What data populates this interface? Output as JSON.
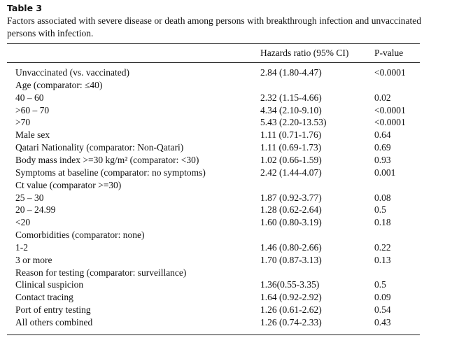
{
  "table_title": "Table 3",
  "caption": "Factors associated with severe disease or death among persons with breakthrough infection and unvaccinated persons with infection.",
  "table": {
    "header": [
      "Hazards ratio (95% CI)",
      "P-value"
    ],
    "rows": [
      {
        "label": "Unvaccinated (vs. vaccinated)",
        "hr": "2.84 (1.80-4.47)",
        "p": "<0.0001"
      },
      {
        "label": "Age (comparator: ≤40)"
      },
      {
        "label": "40 – 60",
        "hr": "2.32 (1.15-4.66)",
        "p": "0.02"
      },
      {
        "label": ">60 – 70",
        "hr": "4.34 (2.10-9.10)",
        "p": "<0.0001"
      },
      {
        "label": ">70",
        "hr": "5.43 (2.20-13.53)",
        "p": "<0.0001"
      },
      {
        "label": "Male sex",
        "hr": "1.11 (0.71-1.76)",
        "p": "0.64"
      },
      {
        "label": "Qatari Nationality (comparator: Non-Qatari)",
        "hr": "1.11 (0.69-1.73)",
        "p": "0.69"
      },
      {
        "label": "Body mass index >=30 kg/m² (comparator: <30)",
        "hr": "1.02 (0.66-1.59)",
        "p": "0.93"
      },
      {
        "label": "Symptoms at baseline (comparator: no symptoms)",
        "hr": "2.42 (1.44-4.07)",
        "p": "0.001"
      },
      {
        "label": "Ct value (comparator >=30)"
      },
      {
        "label": "25 – 30",
        "hr": "1.87 (0.92-3.77)",
        "p": "0.08"
      },
      {
        "label": "20 – 24.99",
        "hr": "1.28 (0.62-2.64)",
        "p": "0.5"
      },
      {
        "label": "<20",
        "hr": "1.60 (0.80-3.19)",
        "p": "0.18"
      },
      {
        "label": "Comorbidities (comparator: none)"
      },
      {
        "label": "1-2",
        "hr": "1.46 (0.80-2.66)",
        "p": "0.22"
      },
      {
        "label": "3 or more",
        "hr": "1.70 (0.87-3.13)",
        "p": "0.13"
      },
      {
        "label": "Reason for testing (comparator: surveillance)"
      },
      {
        "label": "Clinical suspicion",
        "hr": "1.36(0.55-3.35)",
        "p": "0.5"
      },
      {
        "label": "Contact tracing",
        "hr": "1.64 (0.92-2.92)",
        "p": "0.09"
      },
      {
        "label": "Port of entry testing",
        "hr": "1.26 (0.61-2.62)",
        "p": "0.54"
      },
      {
        "label": "All others combined",
        "hr": "1.26 (0.74-2.33)",
        "p": "0.43"
      }
    ]
  }
}
